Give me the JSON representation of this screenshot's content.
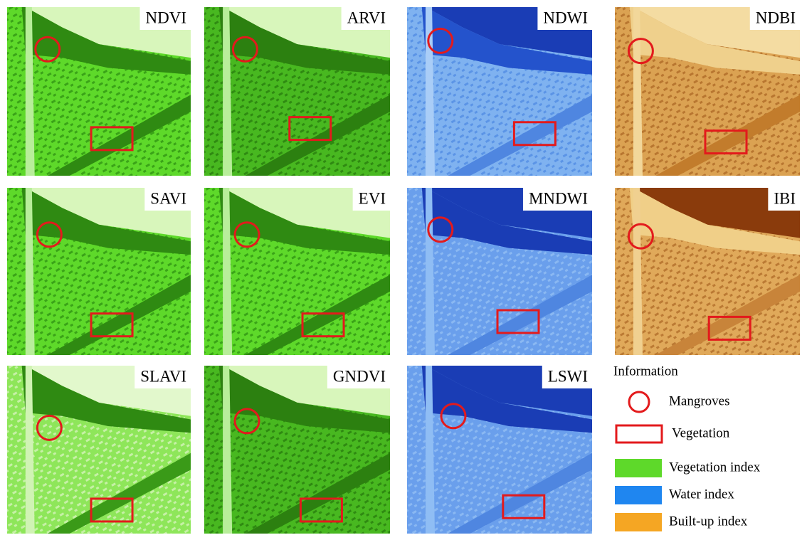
{
  "panels": [
    {
      "label": "NDVI"
    },
    {
      "label": "ARVI"
    },
    {
      "label": "NDWI"
    },
    {
      "label": "NDBI"
    },
    {
      "label": "SAVI"
    },
    {
      "label": "EVI"
    },
    {
      "label": "MNDWI"
    },
    {
      "label": "IBI"
    },
    {
      "label": "SLAVI"
    },
    {
      "label": "GNDVI"
    },
    {
      "label": "LSWI"
    }
  ],
  "legend": {
    "title": "Information",
    "items": [
      {
        "label": "Mangroves",
        "color": "#e31a1c"
      },
      {
        "label": "Vegetation",
        "color": "#e31a1c"
      },
      {
        "label": "Vegetation index",
        "color": "#5ed92a"
      },
      {
        "label": "Water index",
        "color": "#1f86f0"
      },
      {
        "label": "Built-up index",
        "color": "#f5a623"
      }
    ]
  }
}
